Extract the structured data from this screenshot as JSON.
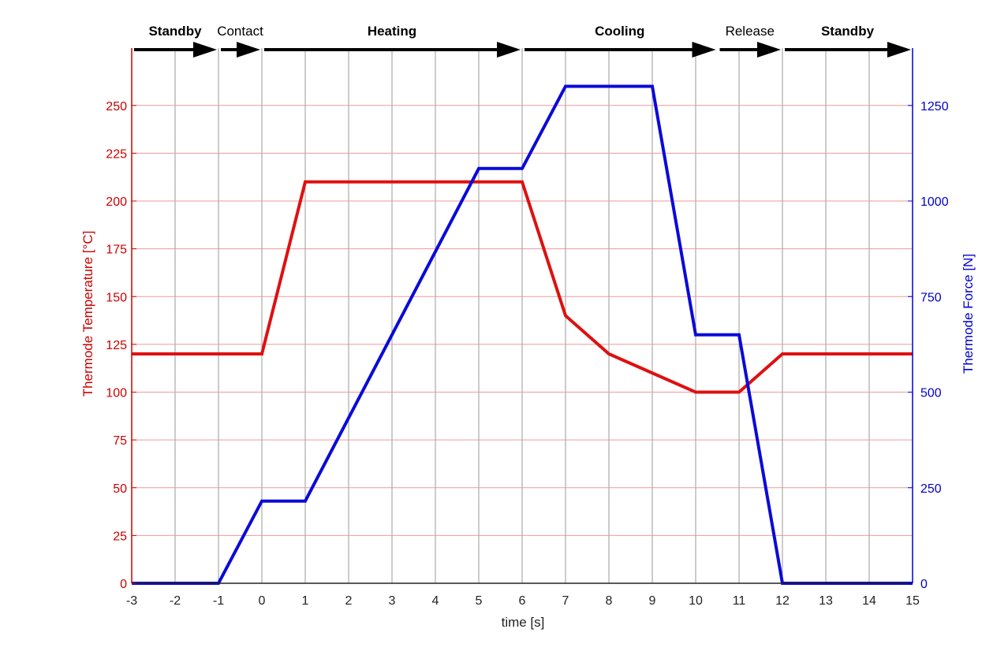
{
  "chart_data": {
    "type": "line",
    "xlabel": "time [s]",
    "ylabel_left": "Thermode Temperature [°C]",
    "ylabel_right": "Thermode Force [N]",
    "xlim": [
      -3,
      15
    ],
    "ylim_left": [
      0,
      280
    ],
    "ylim_right": [
      0,
      1400
    ],
    "x_ticks": [
      -3,
      -2,
      -1,
      0,
      1,
      2,
      3,
      4,
      5,
      6,
      7,
      8,
      9,
      10,
      11,
      12,
      13,
      14,
      15
    ],
    "y_ticks_left": [
      0,
      25,
      50,
      75,
      100,
      125,
      150,
      175,
      200,
      225,
      250
    ],
    "y_ticks_right": [
      0,
      250,
      500,
      750,
      1000,
      1250
    ],
    "grid": true,
    "colors": {
      "left_axis": "#cc0000",
      "right_axis": "#0000cc",
      "temperature": "#dd1111",
      "force": "#0a0ad8",
      "phase_arrows": "#000000"
    },
    "series": [
      {
        "name": "Thermode Temperature",
        "axis": "left",
        "x": [
          -3,
          0,
          1,
          6,
          7,
          8,
          10,
          11,
          12,
          15
        ],
        "y": [
          120,
          120,
          210,
          210,
          140,
          120,
          100,
          100,
          120,
          120
        ]
      },
      {
        "name": "Thermode Force",
        "axis": "right",
        "x": [
          -3,
          -1,
          0,
          1,
          5,
          6,
          7,
          9,
          10,
          11,
          12,
          15
        ],
        "y": [
          0,
          0,
          215,
          215,
          1085,
          1085,
          1300,
          1300,
          650,
          650,
          0,
          0
        ]
      }
    ],
    "phases": [
      {
        "label": "Standby",
        "bold": true,
        "start": -3,
        "end": -1
      },
      {
        "label": "Contact",
        "bold": false,
        "start": -1,
        "end": 0
      },
      {
        "label": "Heating",
        "bold": true,
        "start": 0,
        "end": 6
      },
      {
        "label": "Cooling",
        "bold": true,
        "start": 6,
        "end": 10.5
      },
      {
        "label": "Release",
        "bold": false,
        "start": 10.5,
        "end": 12
      },
      {
        "label": "Standby",
        "bold": true,
        "start": 12,
        "end": 15
      }
    ]
  }
}
